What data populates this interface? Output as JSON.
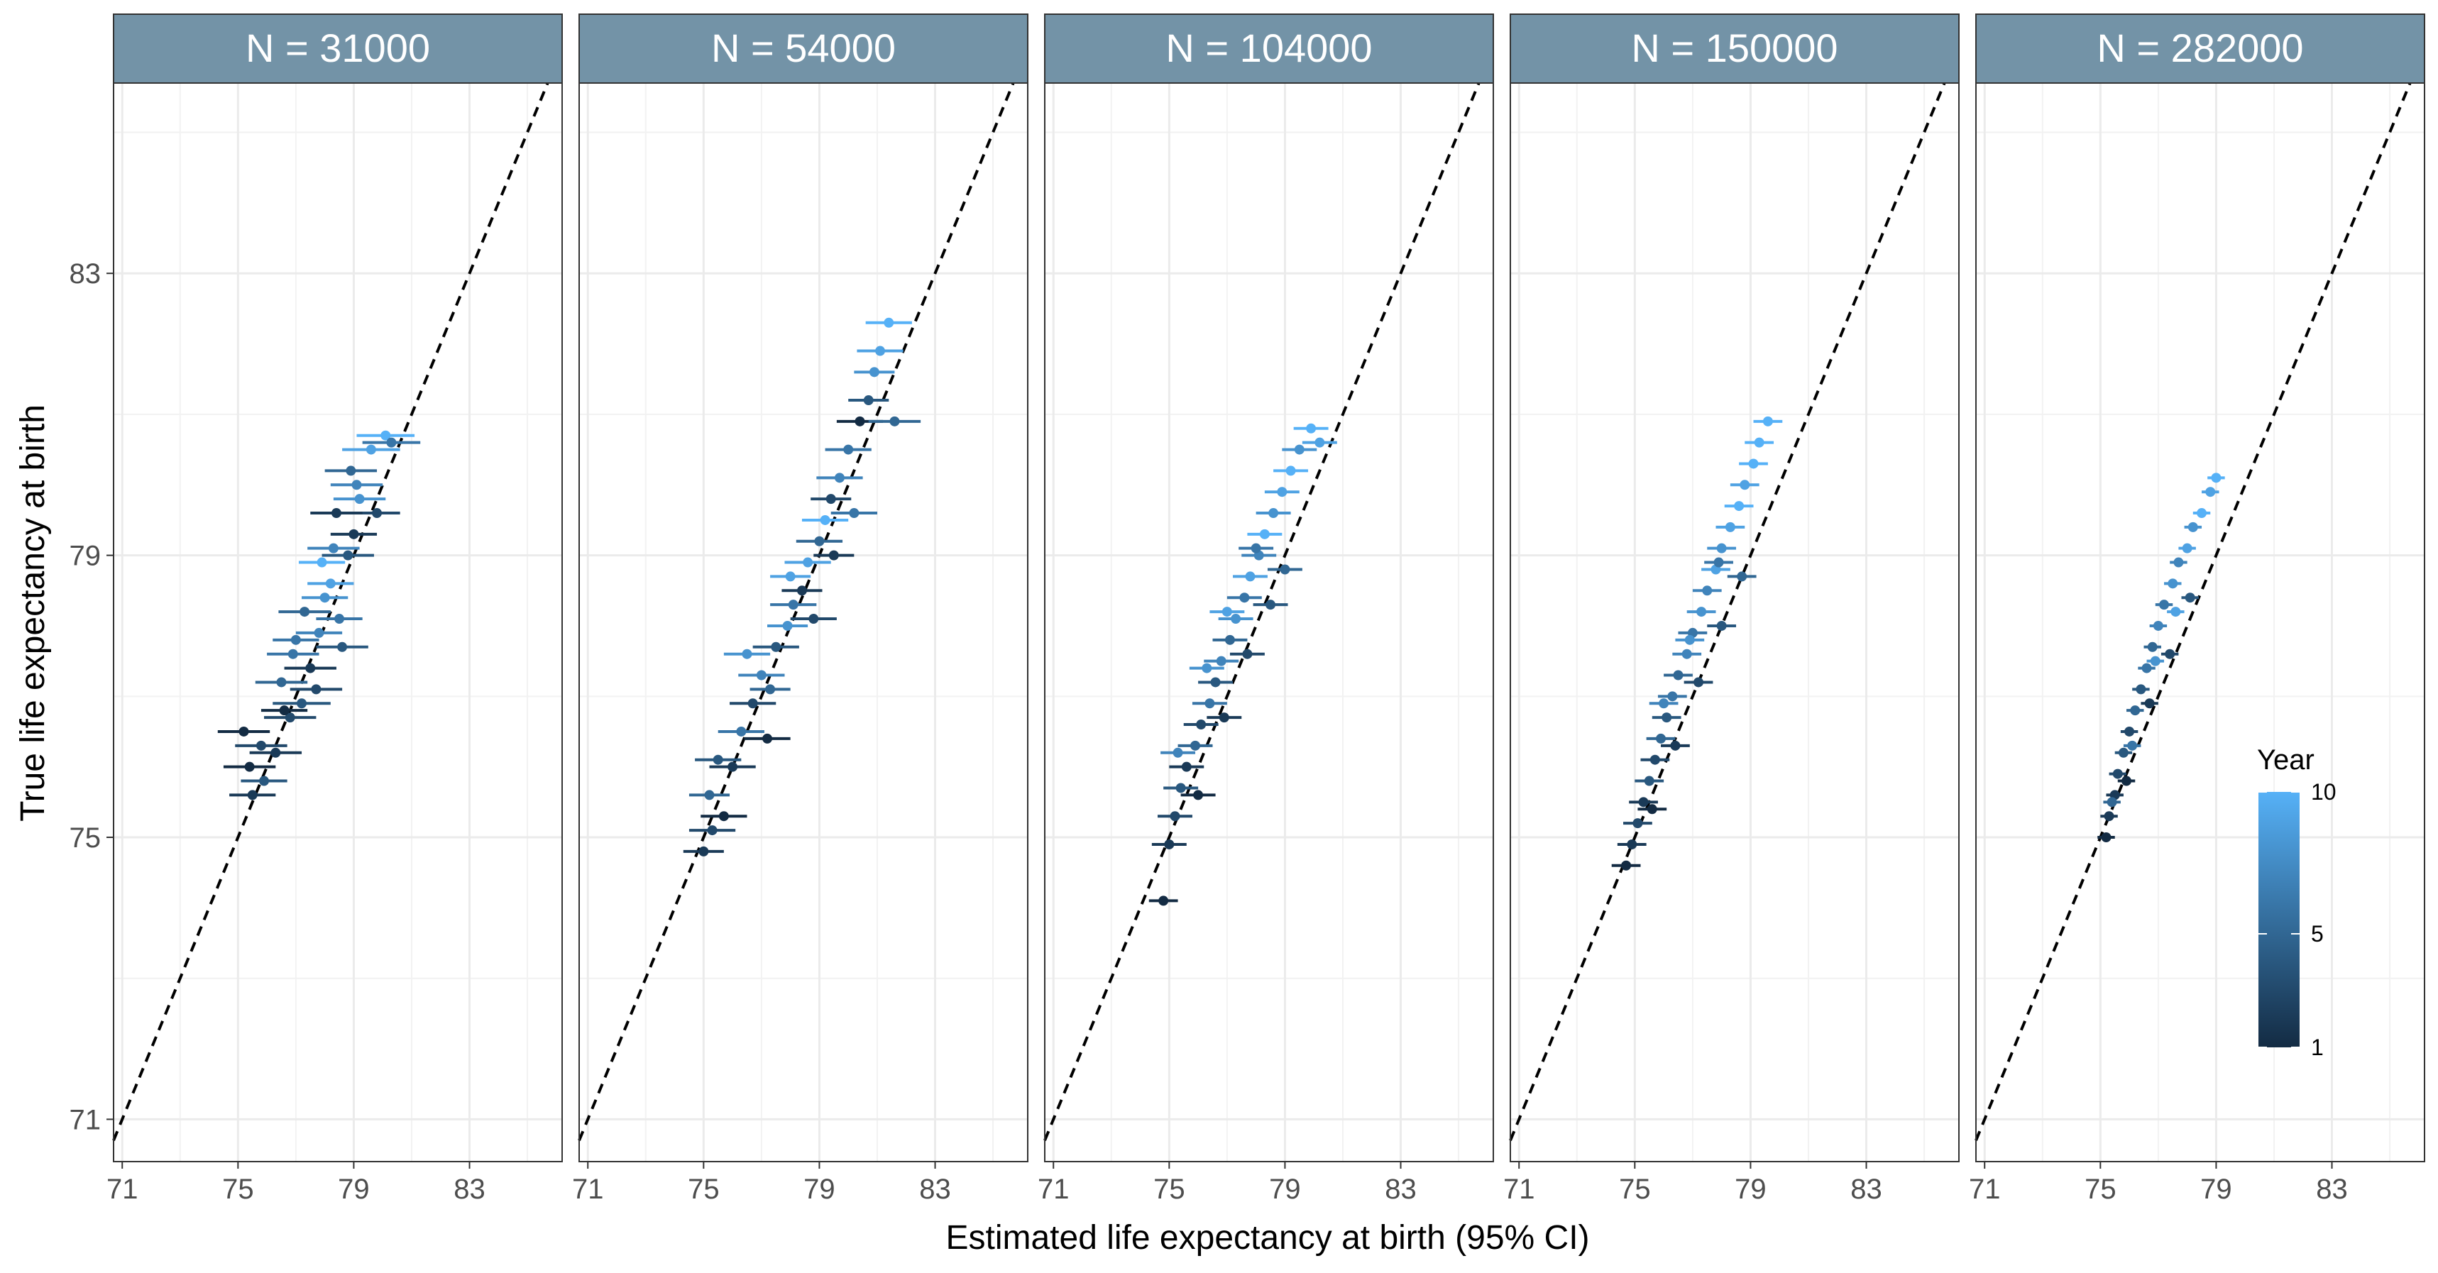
{
  "chart_data": {
    "type": "scatter",
    "xlabel": "Estimated life expectancy at birth (95% CI)",
    "ylabel": "True life expectancy at birth",
    "xlim": [
      70.7,
      86.2
    ],
    "ylim": [
      70.4,
      85.7
    ],
    "xticks": [
      71,
      75,
      79,
      83
    ],
    "yticks": [
      71,
      75,
      79,
      83
    ],
    "grid": true,
    "reference_line": "y = x (dashed)",
    "legend": {
      "title": "Year",
      "position": "right, inside last panel",
      "min": 1,
      "max": 10,
      "breaks": [
        1,
        5,
        10
      ],
      "low_color": "#132B43",
      "high_color": "#56B1F7"
    },
    "panels": [
      {
        "label": "N = 31000",
        "points": [
          [
            75.2,
            76.5,
            1,
            0.9
          ],
          [
            75.5,
            75.6,
            2,
            0.8
          ],
          [
            75.8,
            76.3,
            3,
            0.9
          ],
          [
            75.4,
            76.0,
            1,
            0.9
          ],
          [
            75.9,
            75.8,
            4,
            0.8
          ],
          [
            76.3,
            76.2,
            2,
            0.9
          ],
          [
            76.8,
            76.7,
            3,
            0.9
          ],
          [
            76.5,
            77.2,
            5,
            0.9
          ],
          [
            77.2,
            76.9,
            4,
            1.0
          ],
          [
            76.9,
            77.6,
            6,
            0.9
          ],
          [
            77.5,
            77.4,
            2,
            0.9
          ],
          [
            77.8,
            77.9,
            7,
            0.8
          ],
          [
            77.3,
            78.2,
            5,
            0.9
          ],
          [
            78.0,
            78.4,
            8,
            0.8
          ],
          [
            78.2,
            78.6,
            9,
            0.8
          ],
          [
            77.7,
            77.1,
            3,
            0.9
          ],
          [
            78.5,
            78.1,
            6,
            0.8
          ],
          [
            78.8,
            79.0,
            4,
            0.9
          ],
          [
            78.3,
            79.1,
            7,
            0.9
          ],
          [
            79.0,
            79.3,
            2,
            0.8
          ],
          [
            79.2,
            79.8,
            8,
            0.9
          ],
          [
            78.9,
            80.2,
            5,
            0.9
          ],
          [
            79.6,
            80.5,
            9,
            1.0
          ],
          [
            80.1,
            80.7,
            10,
            1.0
          ],
          [
            80.3,
            80.6,
            6,
            1.0
          ],
          [
            79.8,
            79.6,
            3,
            0.8
          ],
          [
            77.0,
            77.8,
            6,
            0.8
          ],
          [
            76.6,
            76.8,
            1,
            0.8
          ],
          [
            78.6,
            77.7,
            4,
            0.9
          ],
          [
            77.9,
            78.9,
            10,
            0.8
          ],
          [
            79.1,
            80.0,
            7,
            0.9
          ],
          [
            78.4,
            79.6,
            2,
            0.9
          ]
        ]
      },
      {
        "label": "N = 54000",
        "points": [
          [
            75.0,
            74.8,
            2,
            0.7
          ],
          [
            75.3,
            75.1,
            3,
            0.8
          ],
          [
            75.2,
            75.6,
            5,
            0.7
          ],
          [
            75.7,
            75.3,
            1,
            0.8
          ],
          [
            75.5,
            76.1,
            4,
            0.8
          ],
          [
            76.0,
            76.0,
            2,
            0.8
          ],
          [
            76.3,
            76.5,
            6,
            0.8
          ],
          [
            76.7,
            76.9,
            3,
            0.8
          ],
          [
            77.0,
            77.3,
            7,
            0.8
          ],
          [
            77.3,
            77.1,
            5,
            0.7
          ],
          [
            77.5,
            77.7,
            4,
            0.8
          ],
          [
            77.9,
            78.0,
            8,
            0.7
          ],
          [
            78.1,
            78.3,
            6,
            0.8
          ],
          [
            78.4,
            78.5,
            2,
            0.7
          ],
          [
            78.6,
            78.9,
            9,
            0.8
          ],
          [
            79.0,
            79.2,
            5,
            0.8
          ],
          [
            79.2,
            79.5,
            10,
            0.8
          ],
          [
            79.4,
            79.8,
            3,
            0.7
          ],
          [
            79.7,
            80.1,
            7,
            0.8
          ],
          [
            80.0,
            80.5,
            6,
            0.8
          ],
          [
            80.4,
            80.9,
            1,
            0.8
          ],
          [
            80.7,
            81.2,
            4,
            0.7
          ],
          [
            80.9,
            81.6,
            8,
            0.7
          ],
          [
            81.1,
            81.9,
            9,
            0.8
          ],
          [
            81.4,
            82.3,
            10,
            0.8
          ],
          [
            81.6,
            80.9,
            5,
            0.9
          ],
          [
            77.2,
            76.4,
            1,
            0.8
          ],
          [
            78.0,
            78.7,
            9,
            0.7
          ],
          [
            78.8,
            78.1,
            3,
            0.8
          ],
          [
            76.5,
            77.6,
            8,
            0.8
          ],
          [
            79.5,
            79.0,
            2,
            0.7
          ],
          [
            80.2,
            79.6,
            6,
            0.8
          ]
        ]
      },
      {
        "label": "N = 104000",
        "points": [
          [
            74.8,
            74.1,
            1,
            0.5
          ],
          [
            75.0,
            74.9,
            2,
            0.6
          ],
          [
            75.2,
            75.3,
            3,
            0.6
          ],
          [
            75.4,
            75.7,
            4,
            0.6
          ],
          [
            75.6,
            76.0,
            2,
            0.6
          ],
          [
            75.9,
            76.3,
            5,
            0.6
          ],
          [
            76.1,
            76.6,
            3,
            0.6
          ],
          [
            76.4,
            76.9,
            6,
            0.6
          ],
          [
            76.6,
            77.2,
            4,
            0.6
          ],
          [
            76.8,
            77.5,
            7,
            0.6
          ],
          [
            77.1,
            77.8,
            5,
            0.6
          ],
          [
            77.3,
            78.1,
            8,
            0.6
          ],
          [
            77.6,
            78.4,
            6,
            0.6
          ],
          [
            77.8,
            78.7,
            9,
            0.6
          ],
          [
            78.1,
            79.0,
            7,
            0.6
          ],
          [
            78.3,
            79.3,
            10,
            0.6
          ],
          [
            78.6,
            79.6,
            8,
            0.6
          ],
          [
            78.9,
            79.9,
            9,
            0.6
          ],
          [
            79.2,
            80.2,
            10,
            0.6
          ],
          [
            79.5,
            80.5,
            8,
            0.6
          ],
          [
            79.9,
            80.8,
            10,
            0.6
          ],
          [
            80.2,
            80.6,
            9,
            0.6
          ],
          [
            76.0,
            75.6,
            1,
            0.6
          ],
          [
            76.9,
            76.7,
            2,
            0.6
          ],
          [
            77.7,
            77.6,
            3,
            0.6
          ],
          [
            78.5,
            78.3,
            4,
            0.6
          ],
          [
            79.0,
            78.8,
            5,
            0.6
          ],
          [
            75.3,
            76.2,
            7,
            0.6
          ],
          [
            76.3,
            77.4,
            8,
            0.6
          ],
          [
            77.0,
            78.2,
            9,
            0.6
          ],
          [
            78.0,
            79.1,
            6,
            0.6
          ]
        ]
      },
      {
        "label": "N = 150000",
        "points": [
          [
            74.7,
            74.6,
            1,
            0.5
          ],
          [
            74.9,
            74.9,
            2,
            0.5
          ],
          [
            75.1,
            75.2,
            3,
            0.5
          ],
          [
            75.3,
            75.5,
            2,
            0.5
          ],
          [
            75.5,
            75.8,
            4,
            0.5
          ],
          [
            75.7,
            76.1,
            3,
            0.5
          ],
          [
            75.9,
            76.4,
            5,
            0.5
          ],
          [
            76.1,
            76.7,
            4,
            0.5
          ],
          [
            76.3,
            77.0,
            6,
            0.5
          ],
          [
            76.5,
            77.3,
            5,
            0.5
          ],
          [
            76.8,
            77.6,
            7,
            0.5
          ],
          [
            77.0,
            77.9,
            6,
            0.5
          ],
          [
            77.3,
            78.2,
            8,
            0.5
          ],
          [
            77.5,
            78.5,
            7,
            0.5
          ],
          [
            77.8,
            78.8,
            9,
            0.5
          ],
          [
            78.0,
            79.1,
            8,
            0.5
          ],
          [
            78.3,
            79.4,
            9,
            0.5
          ],
          [
            78.6,
            79.7,
            10,
            0.5
          ],
          [
            78.8,
            80.0,
            9,
            0.5
          ],
          [
            79.1,
            80.3,
            10,
            0.5
          ],
          [
            79.3,
            80.6,
            10,
            0.5
          ],
          [
            79.6,
            80.9,
            10,
            0.5
          ],
          [
            75.6,
            75.4,
            1,
            0.5
          ],
          [
            76.4,
            76.3,
            2,
            0.5
          ],
          [
            77.2,
            77.2,
            3,
            0.5
          ],
          [
            78.0,
            78.0,
            4,
            0.5
          ],
          [
            78.7,
            78.7,
            5,
            0.5
          ],
          [
            76.0,
            76.9,
            7,
            0.5
          ],
          [
            76.9,
            77.8,
            8,
            0.5
          ],
          [
            77.9,
            78.9,
            6,
            0.5
          ]
        ]
      },
      {
        "label": "N = 282000",
        "points": [
          [
            75.2,
            75.0,
            1,
            0.3
          ],
          [
            75.3,
            75.3,
            2,
            0.3
          ],
          [
            75.5,
            75.6,
            2,
            0.3
          ],
          [
            75.6,
            75.9,
            3,
            0.3
          ],
          [
            75.8,
            76.2,
            4,
            0.3
          ],
          [
            76.0,
            76.5,
            3,
            0.3
          ],
          [
            76.2,
            76.8,
            5,
            0.3
          ],
          [
            76.4,
            77.1,
            4,
            0.3
          ],
          [
            76.6,
            77.4,
            6,
            0.3
          ],
          [
            76.8,
            77.7,
            5,
            0.3
          ],
          [
            77.0,
            78.0,
            7,
            0.3
          ],
          [
            77.2,
            78.3,
            6,
            0.3
          ],
          [
            77.5,
            78.6,
            8,
            0.3
          ],
          [
            77.7,
            78.9,
            7,
            0.3
          ],
          [
            78.0,
            79.1,
            9,
            0.3
          ],
          [
            78.2,
            79.4,
            8,
            0.3
          ],
          [
            78.5,
            79.6,
            10,
            0.3
          ],
          [
            78.8,
            79.9,
            9,
            0.3
          ],
          [
            79.0,
            80.1,
            10,
            0.3
          ],
          [
            75.9,
            75.8,
            1,
            0.3
          ],
          [
            76.7,
            76.9,
            2,
            0.3
          ],
          [
            77.4,
            77.6,
            3,
            0.3
          ],
          [
            78.1,
            78.4,
            4,
            0.3
          ],
          [
            76.1,
            76.3,
            6,
            0.3
          ],
          [
            76.9,
            77.5,
            8,
            0.3
          ],
          [
            77.6,
            78.2,
            9,
            0.3
          ],
          [
            75.4,
            75.5,
            5,
            0.3
          ]
        ]
      }
    ]
  }
}
